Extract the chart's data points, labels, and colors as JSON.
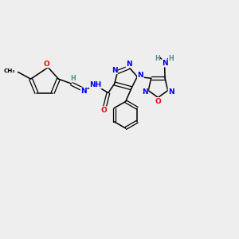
{
  "bg_color": "#eeeeee",
  "atom_colors": {
    "C": "#000000",
    "N": "#0000ee",
    "O": "#ee0000",
    "H": "#4a9090"
  },
  "bond_color": "#000000",
  "figsize": [
    3.0,
    3.0
  ],
  "dpi": 100
}
